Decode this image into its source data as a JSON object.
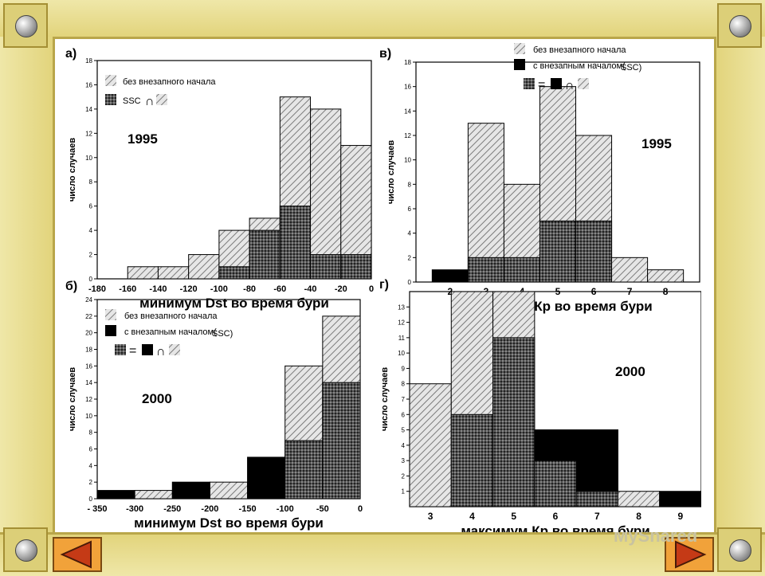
{
  "watermark": "MyShared",
  "chart_data": [
    {
      "panel": "а)",
      "type": "bar",
      "year": "1995",
      "xlabel": "минимум Dst во время бури",
      "ylabel": "число случаев",
      "legend": {
        "no_ssc": "без внезапного начала",
        "ssc": "SSC"
      },
      "ylim": [
        0,
        18
      ],
      "yticks": [
        0,
        2,
        4,
        6,
        8,
        10,
        12,
        14,
        16,
        18
      ],
      "xticks": [
        "-180",
        "-160",
        "-140",
        "-120",
        "-100",
        "-80",
        "-60",
        "-40",
        "-20",
        "0"
      ],
      "xlim": [
        -180,
        0
      ],
      "bins": [
        {
          "x0": -160,
          "x1": -140,
          "total": 1,
          "ssc": 0
        },
        {
          "x0": -140,
          "x1": -120,
          "total": 1,
          "ssc": 0
        },
        {
          "x0": -120,
          "x1": -100,
          "total": 2,
          "ssc": 0
        },
        {
          "x0": -100,
          "x1": -80,
          "total": 4,
          "ssc": 1
        },
        {
          "x0": -80,
          "x1": -60,
          "total": 5,
          "ssc": 4
        },
        {
          "x0": -60,
          "x1": -40,
          "total": 15,
          "ssc": 6
        },
        {
          "x0": -40,
          "x1": -20,
          "total": 14,
          "ssc": 2
        },
        {
          "x0": -20,
          "x1": 0,
          "total": 11,
          "ssc": 2
        }
      ]
    },
    {
      "panel": "в)",
      "type": "bar",
      "year": "1995",
      "xlabel": "максимум Кр во время бури",
      "ylabel": "число случаев",
      "legend": {
        "no_ssc": "без внезапного начала",
        "with_ssc": "с внезапным началом(",
        "ssc": "SSC)"
      },
      "ylim": [
        0,
        18
      ],
      "yticks": [
        0,
        2,
        4,
        6,
        8,
        10,
        12,
        14,
        16,
        18
      ],
      "xticks": [
        "2",
        "3",
        "4",
        "5",
        "6",
        "7",
        "8"
      ],
      "bins": [
        {
          "x": 2,
          "total": 1,
          "ssc": 1,
          "solid": true
        },
        {
          "x": 3,
          "total": 13,
          "ssc": 2
        },
        {
          "x": 4,
          "total": 8,
          "ssc": 2
        },
        {
          "x": 5,
          "total": 16,
          "ssc": 5
        },
        {
          "x": 6,
          "total": 12,
          "ssc": 5
        },
        {
          "x": 7,
          "total": 2,
          "ssc": 0
        },
        {
          "x": 8,
          "total": 1,
          "ssc": 0
        }
      ]
    },
    {
      "panel": "б)",
      "type": "bar",
      "year": "2000",
      "xlabel": "минимум Dst во время бури",
      "ylabel": "число случаев",
      "legend": {
        "no_ssc": "без внезапного начала",
        "with_ssc": "с внезапным началом(",
        "ssc": "SSC)"
      },
      "ylim": [
        0,
        24
      ],
      "yticks": [
        0,
        2,
        4,
        6,
        8,
        10,
        12,
        14,
        16,
        18,
        20,
        22,
        24
      ],
      "xticks": [
        "- 350",
        "-300",
        "-250",
        "-200",
        "-150",
        "-100",
        "-50",
        "0"
      ],
      "xlim": [
        -350,
        0
      ],
      "bins": [
        {
          "x0": -350,
          "x1": -300,
          "total": 1,
          "ssc": 1,
          "solid": true
        },
        {
          "x0": -300,
          "x1": -250,
          "total": 1,
          "ssc": 0
        },
        {
          "x0": -250,
          "x1": -200,
          "total": 2,
          "ssc": 2,
          "solid": true
        },
        {
          "x0": -200,
          "x1": -150,
          "total": 2,
          "ssc": 0
        },
        {
          "x0": -150,
          "x1": -100,
          "total": 5,
          "ssc": 5,
          "solid": true
        },
        {
          "x0": -100,
          "x1": -50,
          "total": 16,
          "ssc": 7
        },
        {
          "x0": -50,
          "x1": 0,
          "total": 22,
          "ssc": 14
        }
      ]
    },
    {
      "panel": "г)",
      "type": "bar",
      "year": "2000",
      "xlabel": "максимум Кр во время бури",
      "ylabel": "число случаев",
      "ylim": [
        0,
        14
      ],
      "yticks": [
        1,
        2,
        3,
        4,
        5,
        6,
        7,
        8,
        9,
        10,
        11,
        12,
        13
      ],
      "xticks": [
        "3",
        "4",
        "5",
        "6",
        "7",
        "8",
        "9"
      ],
      "bins": [
        {
          "x": 3,
          "total": 8,
          "ssc": 0
        },
        {
          "x": 4,
          "total": 14,
          "ssc": 6
        },
        {
          "x": 5,
          "total": 14,
          "ssc": 11
        },
        {
          "x": 6,
          "total": 5,
          "ssc": 3,
          "solid_top": 2
        },
        {
          "x": 7,
          "total": 5,
          "ssc": 1,
          "solid_top": 4
        },
        {
          "x": 8,
          "total": 1,
          "ssc": 0
        },
        {
          "x": 9,
          "total": 1,
          "ssc": 1,
          "solid": true
        }
      ]
    }
  ]
}
